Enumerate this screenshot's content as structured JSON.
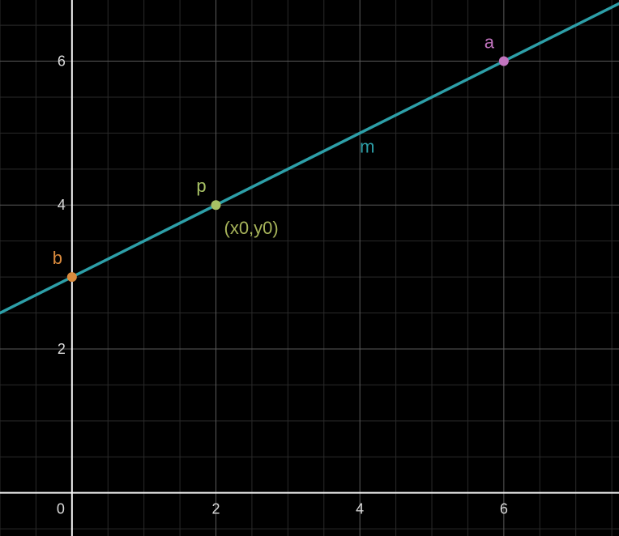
{
  "chart_data": {
    "type": "line",
    "xlim": [
      -1,
      7.6
    ],
    "ylim": [
      -0.6,
      6.85
    ],
    "grid": true,
    "minor_grid_step": 0.5,
    "major_grid_step": 2,
    "x_ticks": [
      "0",
      "2",
      "4",
      "6"
    ],
    "y_ticks": [
      "2",
      "4",
      "6"
    ],
    "x_tick_values": [
      0,
      2,
      4,
      6
    ],
    "y_tick_values": [
      2,
      4,
      6
    ],
    "line": {
      "name": "m",
      "label_at": [
        4,
        5
      ],
      "slope": 0.5,
      "intercept": 3,
      "color": "#2d9fa8"
    },
    "points": [
      {
        "name": "b",
        "x": 0,
        "y": 3,
        "color": "#d98a3d"
      },
      {
        "name": "p",
        "x": 2,
        "y": 4,
        "color": "#a7c164",
        "annotation": "(x0,y0)",
        "annotation_color": "#a7b45a"
      },
      {
        "name": "a",
        "x": 6,
        "y": 6,
        "color": "#c274bf"
      }
    ],
    "colors": {
      "background": "#000000",
      "grid_minor": "#2a2a2a",
      "grid_major": "#5a5a5a",
      "axes": "#f2f2f2",
      "tick_text": "#d9d9d9"
    }
  }
}
